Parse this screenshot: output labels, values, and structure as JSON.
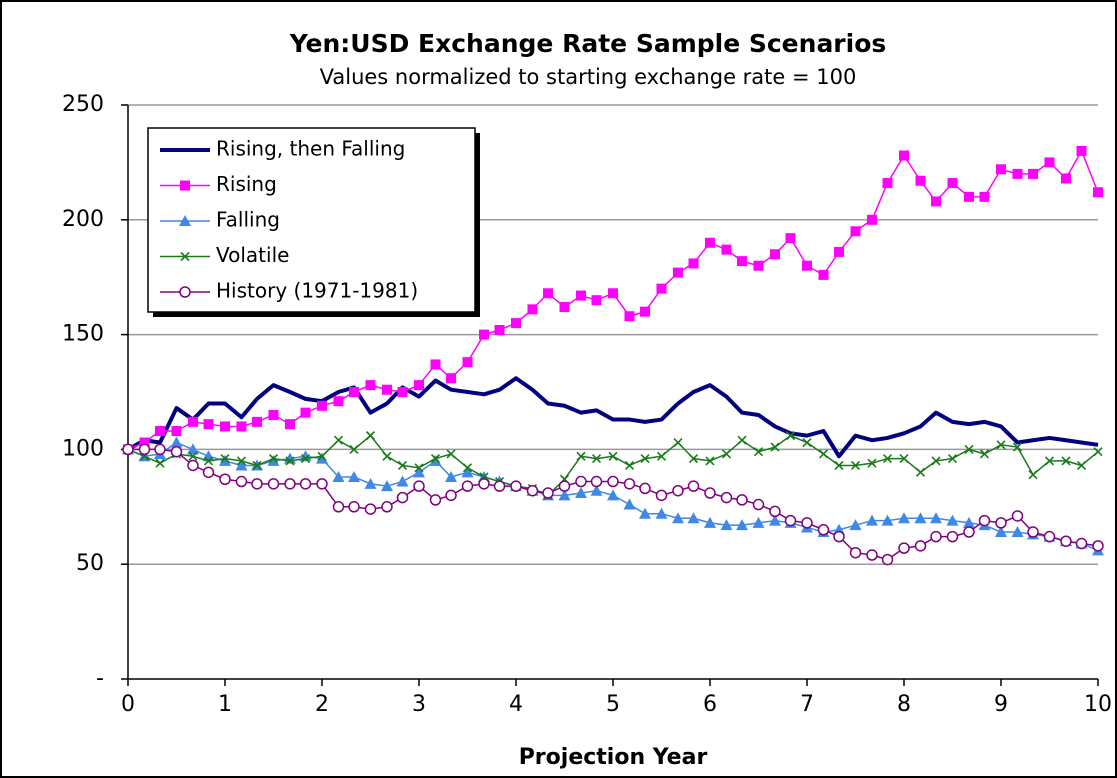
{
  "chart_data": {
    "type": "line",
    "title": "Yen:USD Exchange Rate Sample Scenarios",
    "subtitle": "Values normalized to starting exchange rate = 100",
    "x_label": "Projection Year",
    "x": [
      0,
      0.17,
      0.33,
      0.5,
      0.67,
      0.83,
      1,
      1.17,
      1.33,
      1.5,
      1.67,
      1.83,
      2,
      2.17,
      2.33,
      2.5,
      2.67,
      2.83,
      3,
      3.17,
      3.33,
      3.5,
      3.67,
      3.83,
      4,
      4.17,
      4.33,
      4.5,
      4.67,
      4.83,
      5,
      5.17,
      5.33,
      5.5,
      5.67,
      5.83,
      6,
      6.17,
      6.33,
      6.5,
      6.67,
      6.83,
      7,
      7.17,
      7.33,
      7.5,
      7.67,
      7.83,
      8,
      8.17,
      8.33,
      8.5,
      8.67,
      8.83,
      9,
      9.17,
      9.33,
      9.5,
      9.67,
      9.83,
      10
    ],
    "series": [
      {
        "name": "Rising, then Falling",
        "color": "#000080",
        "marker": "none",
        "values": [
          100,
          104,
          103,
          118,
          113,
          120,
          120,
          114,
          122,
          128,
          125,
          122,
          121,
          125,
          127,
          116,
          120,
          127,
          123,
          130,
          126,
          125,
          124,
          126,
          131,
          126,
          120,
          119,
          116,
          117,
          113,
          113,
          112,
          113,
          120,
          125,
          128,
          123,
          116,
          115,
          110,
          107,
          106,
          108,
          97,
          106,
          104,
          105,
          107,
          110,
          116,
          112,
          111,
          112,
          110,
          103,
          104,
          105,
          104,
          103,
          102
        ]
      },
      {
        "name": "Rising",
        "color": "#ff00ff",
        "marker": "square",
        "values": [
          100,
          103,
          108,
          108,
          112,
          111,
          110,
          110,
          112,
          115,
          111,
          116,
          119,
          121,
          125,
          128,
          126,
          125,
          128,
          137,
          131,
          138,
          150,
          152,
          155,
          161,
          168,
          162,
          167,
          165,
          168,
          158,
          160,
          170,
          177,
          181,
          190,
          187,
          182,
          180,
          185,
          192,
          180,
          176,
          186,
          195,
          200,
          216,
          228,
          217,
          208,
          216,
          210,
          210,
          222,
          220,
          220,
          225,
          218,
          230,
          212
        ]
      },
      {
        "name": "Falling",
        "color": "#3f88e8",
        "marker": "triangle",
        "values": [
          100,
          97,
          98,
          103,
          100,
          97,
          95,
          93,
          93,
          95,
          96,
          97,
          96,
          88,
          88,
          85,
          84,
          86,
          90,
          95,
          88,
          90,
          88,
          86,
          84,
          82,
          80,
          80,
          81,
          82,
          80,
          76,
          72,
          72,
          70,
          70,
          68,
          67,
          67,
          68,
          69,
          68,
          66,
          64,
          65,
          67,
          69,
          69,
          70,
          70,
          70,
          69,
          68,
          67,
          64,
          64,
          63,
          62,
          60,
          59,
          56
        ]
      },
      {
        "name": "Volatile",
        "color": "#1a7a1a",
        "marker": "x",
        "values": [
          100,
          97,
          94,
          98,
          97,
          95,
          96,
          95,
          93,
          96,
          95,
          96,
          97,
          104,
          100,
          106,
          97,
          93,
          92,
          96,
          98,
          92,
          88,
          86,
          84,
          83,
          80,
          87,
          97,
          96,
          97,
          93,
          96,
          97,
          103,
          96,
          95,
          98,
          104,
          99,
          101,
          106,
          103,
          98,
          93,
          93,
          94,
          96,
          96,
          90,
          95,
          96,
          100,
          98,
          102,
          101,
          89,
          95,
          95,
          93,
          99
        ]
      },
      {
        "name": "History (1971-1981)",
        "color": "#800080",
        "marker": "circle",
        "values": [
          100,
          100,
          100,
          99,
          93,
          90,
          87,
          86,
          85,
          85,
          85,
          85,
          85,
          75,
          75,
          74,
          75,
          79,
          84,
          78,
          80,
          84,
          85,
          84,
          84,
          82,
          81,
          84,
          86,
          86,
          86,
          85,
          83,
          80,
          82,
          84,
          81,
          79,
          78,
          76,
          73,
          69,
          68,
          65,
          62,
          55,
          54,
          52,
          57,
          58,
          62,
          62,
          64,
          69,
          68,
          71,
          64,
          62,
          60,
          59,
          58
        ]
      }
    ],
    "xlim": [
      0,
      10
    ],
    "xticks": [
      0,
      1,
      2,
      3,
      4,
      5,
      6,
      7,
      8,
      9,
      10
    ],
    "ylim": [
      0,
      250
    ],
    "yticks": [
      {
        "value": 0,
        "label": "-"
      },
      50,
      100,
      150,
      200,
      250
    ],
    "grid": true,
    "legend": "upper left"
  }
}
